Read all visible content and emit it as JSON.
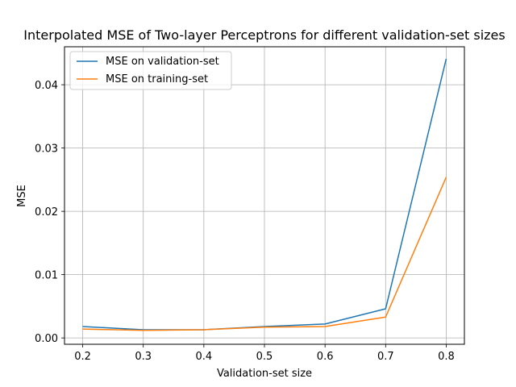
{
  "chart_data": {
    "type": "line",
    "title": "Interpolated MSE of Two-layer Perceptrons for different validation-set sizes",
    "xlabel": "Validation-set size",
    "ylabel": "MSE",
    "x": [
      0.2,
      0.3,
      0.4,
      0.5,
      0.6,
      0.7,
      0.8
    ],
    "xlim": [
      0.17,
      0.83
    ],
    "ylim": [
      -0.001,
      0.046
    ],
    "xticks": [
      0.2,
      0.3,
      0.4,
      0.5,
      0.6,
      0.7,
      0.8
    ],
    "xtick_labels": [
      "0.2",
      "0.3",
      "0.4",
      "0.5",
      "0.6",
      "0.7",
      "0.8"
    ],
    "yticks": [
      0.0,
      0.01,
      0.02,
      0.03,
      0.04
    ],
    "ytick_labels": [
      "0.00",
      "0.01",
      "0.02",
      "0.03",
      "0.04"
    ],
    "grid": true,
    "legend_position": "top-left",
    "series": [
      {
        "name": "MSE on validation-set",
        "color": "#1f77b4",
        "values": [
          0.0018,
          0.0013,
          0.0013,
          0.0018,
          0.0022,
          0.0046,
          0.0441
        ]
      },
      {
        "name": "MSE on training-set",
        "color": "#ff7f0e",
        "values": [
          0.0014,
          0.0012,
          0.0013,
          0.0017,
          0.0018,
          0.0033,
          0.0254
        ]
      }
    ]
  }
}
